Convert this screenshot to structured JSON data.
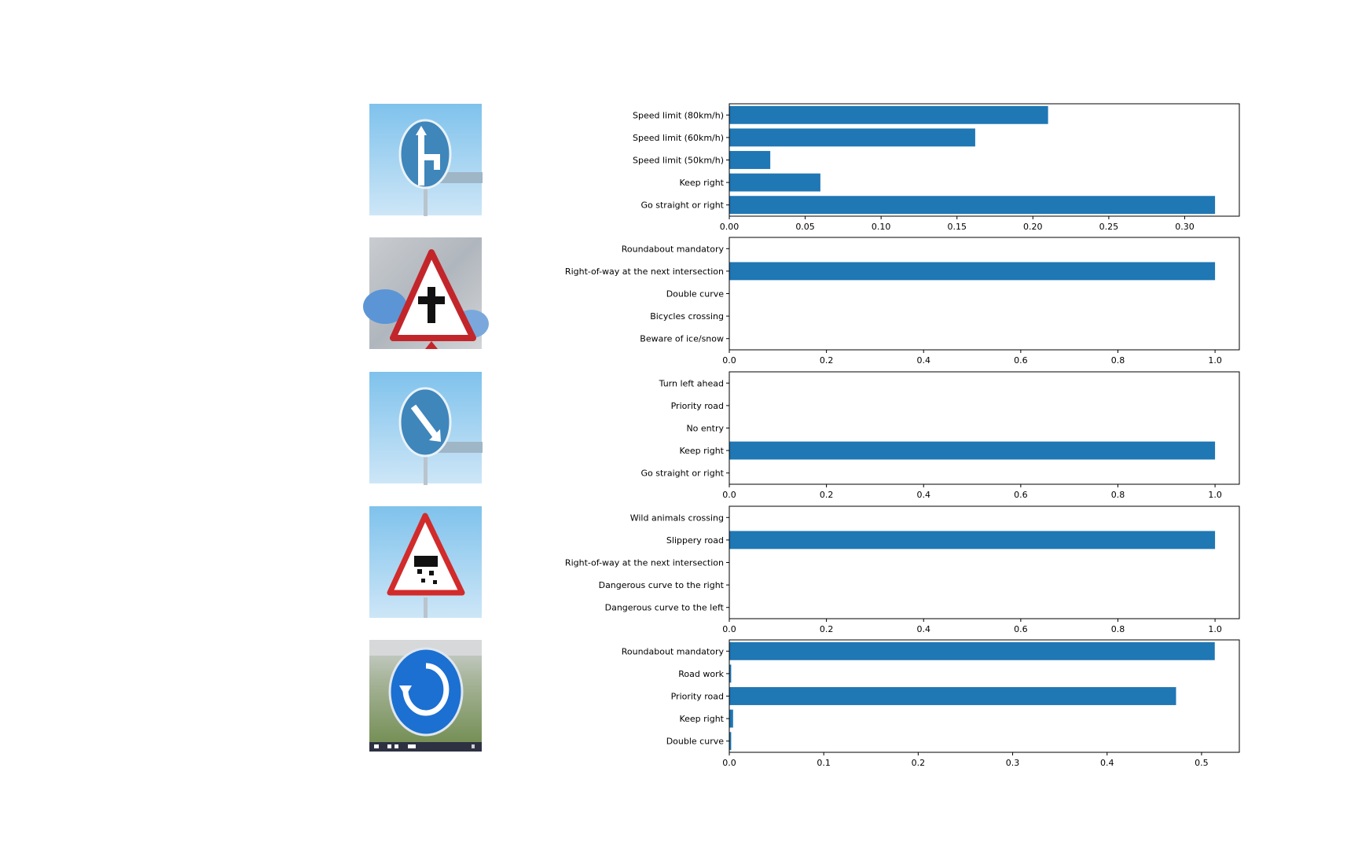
{
  "colors": {
    "bar": "#1f77b4",
    "axis": "#000000",
    "background": "#ffffff"
  },
  "chart_data": [
    {
      "type": "bar",
      "orientation": "horizontal",
      "image_icon": "keep-right-sign-image",
      "categories": [
        "Go straight or right",
        "Keep right",
        "Speed limit (50km/h)",
        "Speed limit (60km/h)",
        "Speed limit (80km/h)"
      ],
      "values": [
        0.32,
        0.06,
        0.027,
        0.162,
        0.21
      ],
      "xlim": [
        0,
        0.336
      ],
      "xticks": [
        0.0,
        0.05,
        0.1,
        0.15,
        0.2,
        0.25,
        0.3
      ],
      "xtick_labels": [
        "0.00",
        "0.05",
        "0.10",
        "0.15",
        "0.20",
        "0.25",
        "0.30"
      ],
      "grid": false
    },
    {
      "type": "bar",
      "orientation": "horizontal",
      "image_icon": "right-of-way-warning-sign-image",
      "categories": [
        "Beware of ice/snow",
        "Bicycles crossing",
        "Double curve",
        "Right-of-way at the next intersection",
        "Roundabout mandatory"
      ],
      "values": [
        0,
        0,
        0,
        1.0,
        0
      ],
      "xlim": [
        0,
        1.05
      ],
      "xticks": [
        0.0,
        0.2,
        0.4,
        0.6,
        0.8,
        1.0
      ],
      "xtick_labels": [
        "0.0",
        "0.2",
        "0.4",
        "0.6",
        "0.8",
        "1.0"
      ],
      "grid": false
    },
    {
      "type": "bar",
      "orientation": "horizontal",
      "image_icon": "keep-right-arrow-sign-image",
      "categories": [
        "Go straight or right",
        "Keep right",
        "No entry",
        "Priority road",
        "Turn left ahead"
      ],
      "values": [
        0,
        1.0,
        0,
        0,
        0
      ],
      "xlim": [
        0,
        1.05
      ],
      "xticks": [
        0.0,
        0.2,
        0.4,
        0.6,
        0.8,
        1.0
      ],
      "xtick_labels": [
        "0.0",
        "0.2",
        "0.4",
        "0.6",
        "0.8",
        "1.0"
      ],
      "grid": false
    },
    {
      "type": "bar",
      "orientation": "horizontal",
      "image_icon": "slippery-road-sign-image",
      "categories": [
        "Dangerous curve to the left",
        "Dangerous curve to the right",
        "Right-of-way at the next intersection",
        "Slippery road",
        "Wild animals crossing"
      ],
      "values": [
        0,
        0,
        0,
        1.0,
        0
      ],
      "xlim": [
        0,
        1.05
      ],
      "xticks": [
        0.0,
        0.2,
        0.4,
        0.6,
        0.8,
        1.0
      ],
      "xtick_labels": [
        "0.0",
        "0.2",
        "0.4",
        "0.6",
        "0.8",
        "1.0"
      ],
      "grid": false
    },
    {
      "type": "bar",
      "orientation": "horizontal",
      "image_icon": "roundabout-sign-image",
      "categories": [
        "Double curve",
        "Keep right",
        "Priority road",
        "Road work",
        "Roundabout mandatory"
      ],
      "values": [
        0.002,
        0.004,
        0.473,
        0.002,
        0.514
      ],
      "xlim": [
        0,
        0.54
      ],
      "xticks": [
        0.0,
        0.1,
        0.2,
        0.3,
        0.4,
        0.5
      ],
      "xtick_labels": [
        "0.0",
        "0.1",
        "0.2",
        "0.3",
        "0.4",
        "0.5"
      ],
      "grid": false
    }
  ]
}
